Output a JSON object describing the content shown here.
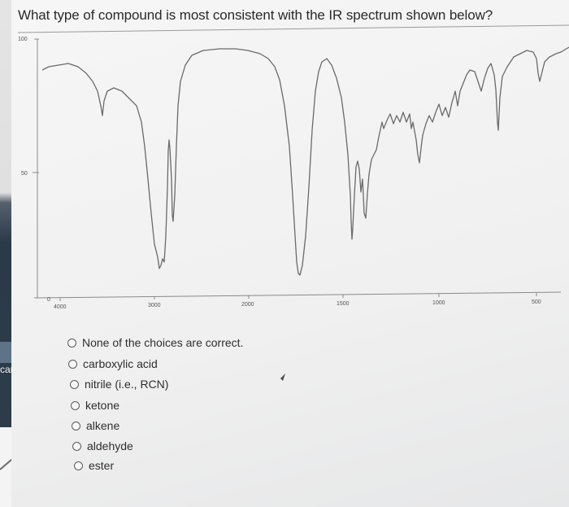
{
  "question": {
    "text": "What type of compound is most consistent with the IR spectrum shown below?"
  },
  "spectrum": {
    "y_ticks": [
      "100",
      "50",
      "0"
    ],
    "x_ticks": [
      "4000",
      "3000",
      "2000",
      "1500",
      "1000",
      "500"
    ]
  },
  "choices": [
    {
      "label": "None of the choices are correct.",
      "selected": false
    },
    {
      "label": "carboxylic acid",
      "selected": false
    },
    {
      "label": "nitrile (i.e., RCN)",
      "selected": false
    },
    {
      "label": "ketone",
      "selected": false
    },
    {
      "label": "alkene",
      "selected": false
    },
    {
      "label": "aldehyde",
      "selected": false
    },
    {
      "label": "ester",
      "selected": false
    }
  ],
  "sidebar": {
    "partial_text": "can b"
  },
  "colors": {
    "spectrum_line": "#6a6a6a",
    "text": "#2c2c2c",
    "sidebar_dark": "#2f3d4a"
  },
  "icons": [
    "radio-button-icon",
    "mouse-cursor-icon",
    "arrow-icon"
  ]
}
